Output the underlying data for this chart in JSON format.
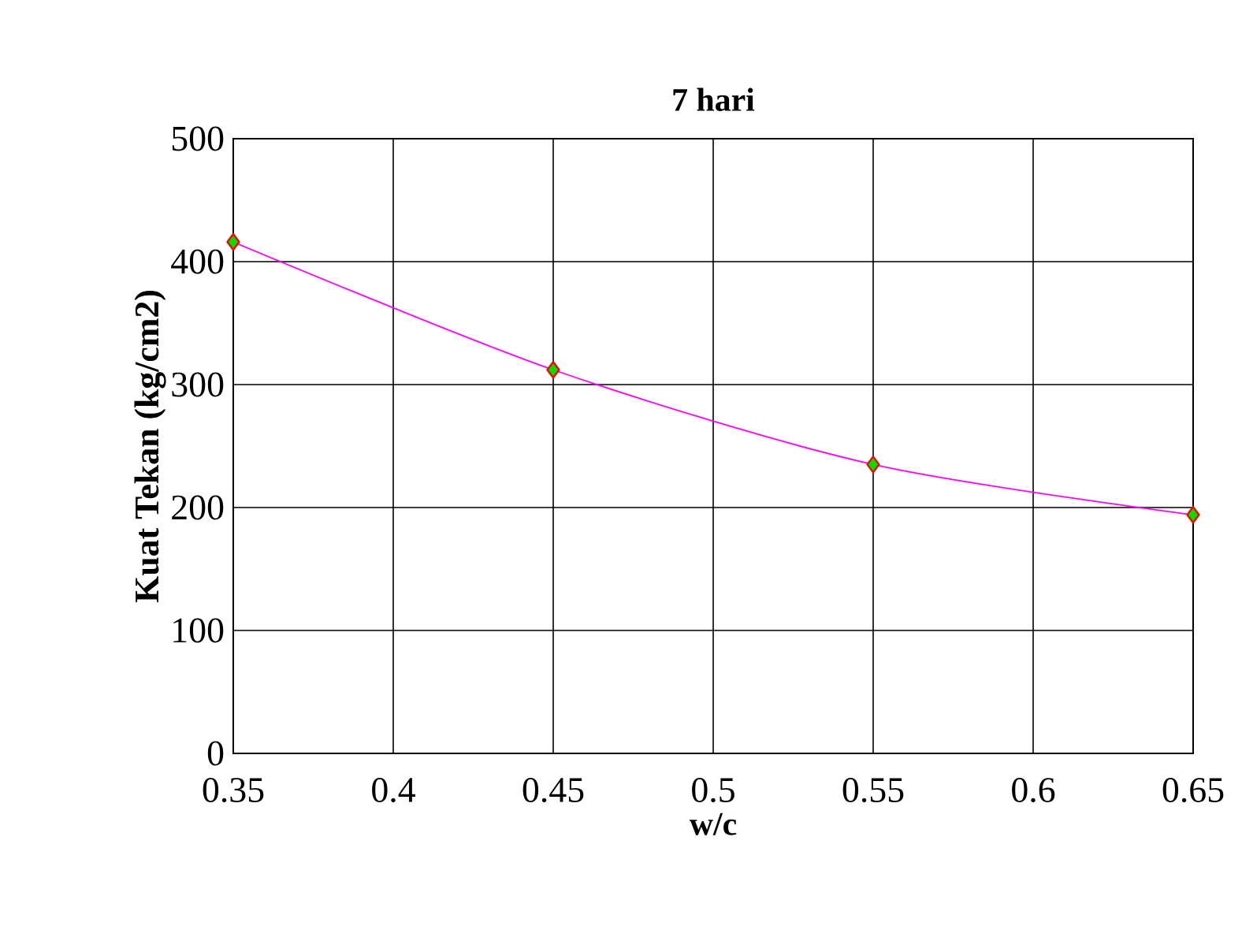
{
  "chart_data": {
    "type": "line",
    "title": "7 hari",
    "xlabel": "w/c",
    "ylabel": "Kuat Tekan (kg/cm2)",
    "x": [
      0.35,
      0.45,
      0.55,
      0.65
    ],
    "series": [
      {
        "color": "#ff00ff",
        "values": [
          416,
          312,
          235,
          194
        ]
      }
    ],
    "xlim": [
      0.35,
      0.65
    ],
    "xticks": [
      0.35,
      0.4,
      0.45,
      0.5,
      0.55,
      0.6,
      0.65
    ],
    "ylim": [
      0,
      500
    ],
    "yticks": [
      0,
      100,
      200,
      300,
      400,
      500
    ],
    "grid": true,
    "marker": "diamond"
  }
}
